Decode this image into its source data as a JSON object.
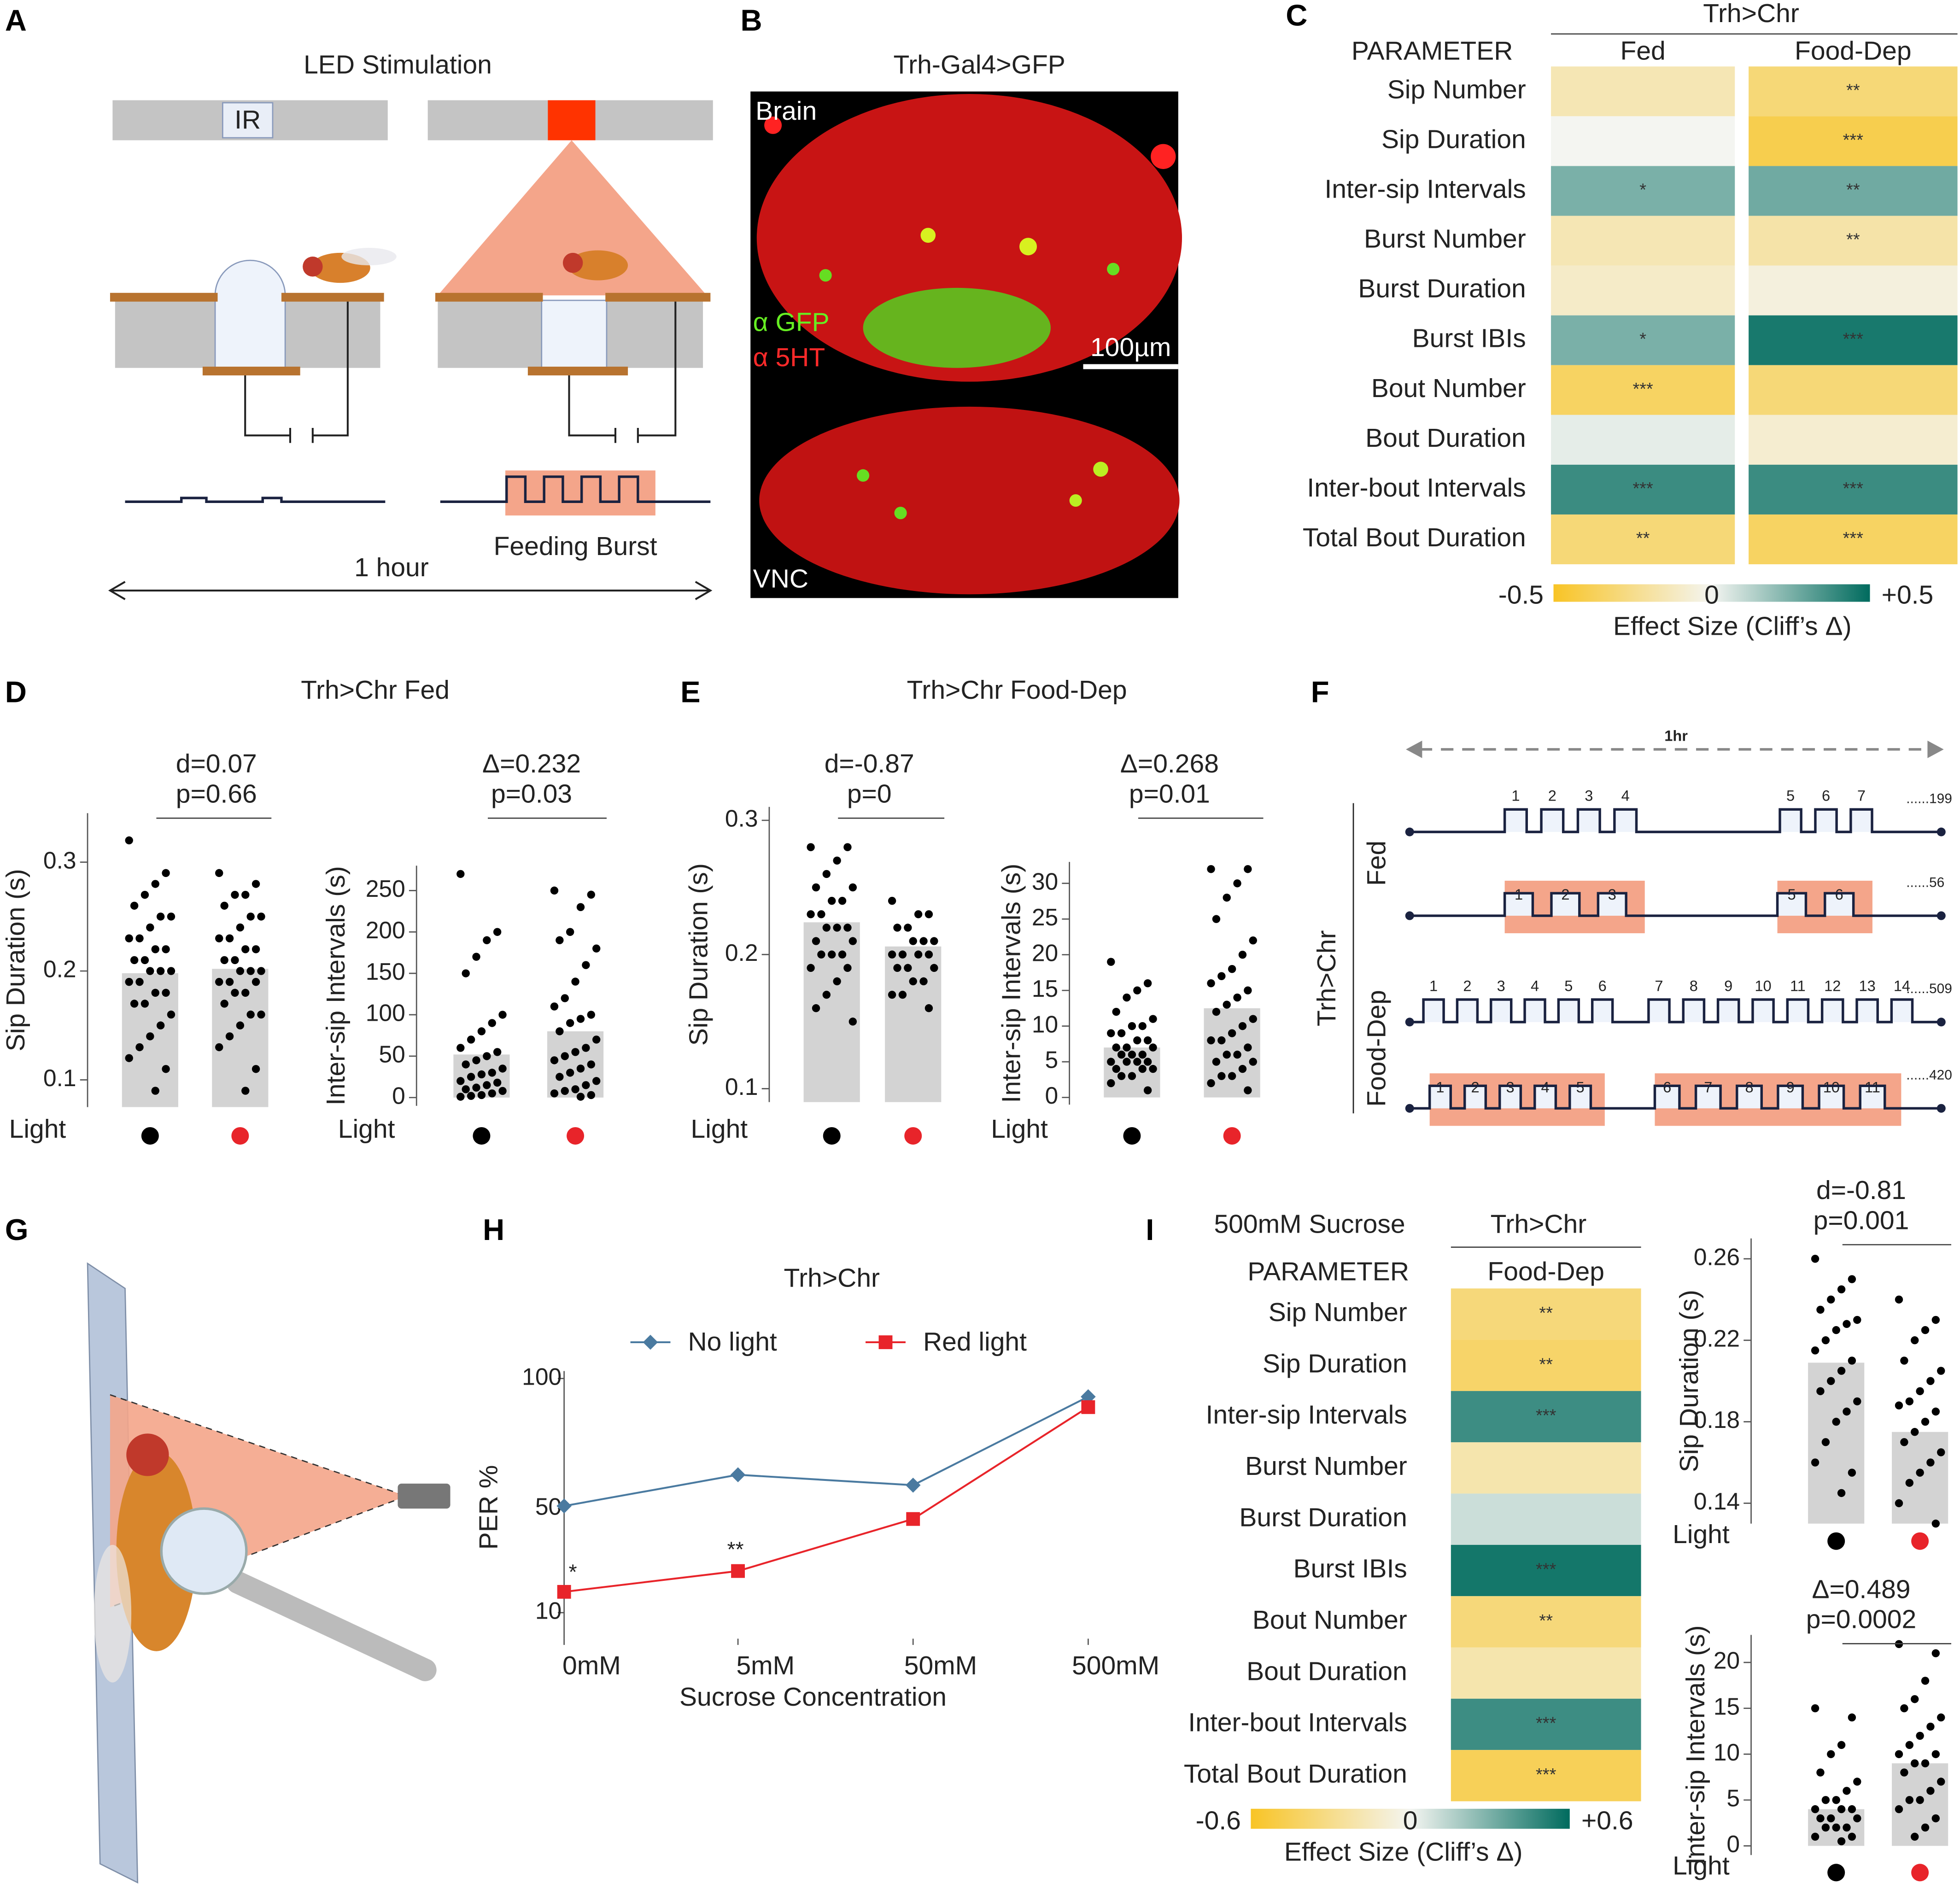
{
  "panel_labels": [
    "A",
    "B",
    "C",
    "D",
    "E",
    "F",
    "G",
    "H",
    "I"
  ],
  "panel_a": {
    "title": "LED Stimulation",
    "ir_label": "IR",
    "burst_label": "Feeding Burst",
    "duration_label": "1 hour"
  },
  "panel_b": {
    "title": "Trh-Gal4>GFP",
    "region_top": "Brain",
    "stain_green": "α GFP",
    "stain_red": "α 5HT",
    "scale_bar": "100µm",
    "region_bottom": "VNC"
  },
  "panel_c": {
    "genotype": "Trh>Chr",
    "header": "PARAMETER",
    "columns": [
      "Fed",
      "Food-Dep"
    ],
    "rows": [
      "Sip Number",
      "Sip Duration",
      "Inter-sip Intervals",
      "Burst Number",
      "Burst Duration",
      "Burst IBIs",
      "Bout Number",
      "Bout Duration",
      "Inter-bout Intervals",
      "Total Bout Duration"
    ],
    "values": [
      [
        -0.15,
        0.0,
        0.25,
        -0.15,
        -0.1,
        0.25,
        -0.35,
        0.03,
        0.38,
        -0.3
      ],
      [
        -0.3,
        -0.4,
        0.27,
        -0.18,
        -0.05,
        0.45,
        -0.3,
        -0.08,
        0.38,
        -0.35
      ]
    ],
    "stars": [
      [
        null,
        null,
        "*",
        null,
        null,
        "*",
        "***",
        null,
        "***",
        "**"
      ],
      [
        "**",
        "***",
        "**",
        "**",
        null,
        "***",
        null,
        null,
        "***",
        "***"
      ]
    ],
    "clim": [
      -0.5,
      0.5
    ],
    "cticks": [
      -0.5,
      0,
      {
        "value": 0.5,
        "label": "+0.5"
      }
    ],
    "colorbar_label": "Effect Size (Cliff’s Δ)",
    "colors": [
      "#f8c425",
      "#f4f5f1",
      "#006b5e"
    ]
  },
  "panel_d": {
    "title": "Trh>Chr Fed"
  },
  "panel_e": {
    "title": "Trh>Chr Food-Dep"
  },
  "panel_f": {
    "duration": "1hr",
    "genotype": "Trh>Chr",
    "conditions": [
      "Fed",
      "Food-Dep"
    ],
    "rows": [
      {
        "groups": [
          [
            "1",
            "2",
            "3",
            "4"
          ],
          [
            "5",
            "6",
            "7"
          ]
        ],
        "total": "......199",
        "highlight": false
      },
      {
        "groups": [
          [
            "1",
            "2",
            "3"
          ],
          [
            "5",
            "6"
          ]
        ],
        "total": "......56",
        "highlight": true
      },
      {
        "groups": [
          [
            "1",
            "2",
            "3",
            "4",
            "5",
            "6"
          ],
          [
            "7",
            "8",
            "9",
            "10",
            "11",
            "12",
            "13",
            "14"
          ]
        ],
        "total": "......509",
        "highlight": false
      },
      {
        "groups": [
          [
            "1",
            "2",
            "3",
            "4",
            "5"
          ],
          [
            "6",
            "7",
            "8",
            "9",
            "10",
            "11"
          ]
        ],
        "total": "......420",
        "highlight": true
      }
    ]
  },
  "panel_i": {
    "title": "500mM Sucrose",
    "genotype": "Trh>Chr",
    "header": "PARAMETER",
    "columns": [
      "Food-Dep"
    ],
    "rows": [
      "Sip Number",
      "Sip Duration",
      "Inter-sip Intervals",
      "Burst Number",
      "Burst Duration",
      "Burst IBIs",
      "Bout Number",
      "Bout Duration",
      "Inter-bout Intervals",
      "Total Bout Duration"
    ],
    "values": [
      [
        -0.35,
        -0.4,
        0.45,
        -0.2,
        0.1,
        0.55,
        -0.35,
        -0.2,
        0.45,
        -0.45
      ]
    ],
    "stars": [
      [
        "**",
        "**",
        "***",
        null,
        null,
        "***",
        "**",
        null,
        "***",
        "***"
      ]
    ],
    "clim": [
      -0.6,
      0.6
    ],
    "cticks": [
      -0.6,
      0,
      {
        "value": 0.6,
        "label": "+0.6"
      }
    ],
    "colorbar_label": "Effect Size (Cliff’s Δ)",
    "colors": [
      "#f8c425",
      "#f4f5f1",
      "#006b5e"
    ]
  },
  "chart_data": [
    {
      "type": "swarm",
      "ylabel": "Sip Duration (s)",
      "xlabel": "Light",
      "stat": [
        "d=0.07",
        "p=0.66"
      ],
      "ylim": [
        0.075,
        0.345
      ],
      "yticks": [
        0.1,
        0.2,
        0.3
      ],
      "values": [
        0.198,
        0.202
      ],
      "points": [
        [
          0.32,
          0.29,
          0.28,
          0.27,
          0.26,
          0.25,
          0.25,
          0.24,
          0.23,
          0.23,
          0.22,
          0.22,
          0.21,
          0.21,
          0.2,
          0.2,
          0.2,
          0.19,
          0.19,
          0.18,
          0.18,
          0.17,
          0.17,
          0.16,
          0.15,
          0.14,
          0.13,
          0.12,
          0.11,
          0.09
        ],
        [
          0.29,
          0.28,
          0.27,
          0.27,
          0.26,
          0.25,
          0.25,
          0.24,
          0.23,
          0.23,
          0.22,
          0.22,
          0.21,
          0.21,
          0.2,
          0.2,
          0.2,
          0.19,
          0.19,
          0.19,
          0.18,
          0.18,
          0.17,
          0.16,
          0.16,
          0.15,
          0.14,
          0.13,
          0.11,
          0.09
        ]
      ],
      "colors": [
        "#000000",
        "#e8242a"
      ],
      "bar_color": "#d3d3d3",
      "point_color": "#000000"
    },
    {
      "type": "swarm",
      "ylabel": "Inter-sip Intervals (s)",
      "xlabel": "Light",
      "stat": [
        "Δ=0.232",
        "p=0.03"
      ],
      "ylim": [
        -10,
        280
      ],
      "yticks": [
        0,
        50,
        100,
        150,
        200,
        250
      ],
      "values": [
        52,
        80
      ],
      "points": [
        [
          270,
          200,
          190,
          170,
          150,
          100,
          90,
          80,
          70,
          60,
          55,
          50,
          45,
          40,
          35,
          30,
          28,
          25,
          20,
          18,
          15,
          12,
          10,
          8,
          5,
          3,
          2,
          1
        ],
        [
          250,
          245,
          230,
          200,
          190,
          180,
          160,
          140,
          120,
          110,
          100,
          95,
          90,
          80,
          70,
          60,
          55,
          50,
          45,
          40,
          35,
          30,
          25,
          20,
          15,
          10,
          8,
          5,
          3,
          1
        ]
      ],
      "colors": [
        "#000000",
        "#e8242a"
      ],
      "bar_color": "#d3d3d3",
      "point_color": "#000000"
    },
    {
      "type": "swarm",
      "ylabel": "Sip Duration (s)",
      "xlabel": "Light",
      "stat": [
        "d=-0.87",
        "p=0"
      ],
      "ylim": [
        0.09,
        0.31
      ],
      "yticks": [
        0.1,
        0.2,
        0.3
      ],
      "values": [
        0.224,
        0.206
      ],
      "points": [
        [
          0.28,
          0.28,
          0.27,
          0.26,
          0.25,
          0.25,
          0.24,
          0.24,
          0.23,
          0.23,
          0.22,
          0.22,
          0.22,
          0.21,
          0.21,
          0.2,
          0.2,
          0.2,
          0.19,
          0.19,
          0.18,
          0.17,
          0.16,
          0.15
        ],
        [
          0.24,
          0.23,
          0.23,
          0.22,
          0.22,
          0.21,
          0.21,
          0.21,
          0.2,
          0.2,
          0.2,
          0.2,
          0.19,
          0.19,
          0.19,
          0.18,
          0.18,
          0.17,
          0.17,
          0.16
        ]
      ],
      "colors": [
        "#000000",
        "#e8242a"
      ],
      "bar_color": "#d3d3d3",
      "point_color": "#000000"
    },
    {
      "type": "swarm",
      "ylabel": "Inter-sip Intervals (s)",
      "xlabel": "Light",
      "stat": [
        "Δ=0.268",
        "p=0.01"
      ],
      "ylim": [
        -1,
        33
      ],
      "yticks": [
        0,
        5,
        10,
        15,
        20,
        25,
        30
      ],
      "values": [
        7,
        12.5
      ],
      "points": [
        [
          19,
          16,
          15,
          14,
          12,
          11,
          10,
          10,
          9,
          9,
          8,
          8,
          7,
          7,
          7,
          6,
          6,
          6,
          5,
          5,
          5,
          5,
          4,
          4,
          4,
          3,
          3,
          2,
          1
        ],
        [
          32,
          32,
          30,
          28,
          25,
          22,
          20,
          18,
          17,
          16,
          15,
          14,
          13,
          12,
          11,
          10,
          9,
          8,
          8,
          7,
          6,
          6,
          5,
          5,
          4,
          3,
          3,
          2,
          1
        ]
      ],
      "colors": [
        "#000000",
        "#e8242a"
      ],
      "bar_color": "#d3d3d3",
      "point_color": "#000000"
    },
    {
      "type": "swarm",
      "ylabel": "Sip Duration (s)",
      "xlabel": "Light",
      "stat": [
        "d=-0.81",
        "p=0.001"
      ],
      "ylim": [
        0.13,
        0.27
      ],
      "yticks": [
        0.14,
        0.18,
        0.22,
        0.26
      ],
      "values": [
        0.209,
        0.175
      ],
      "points": [
        [
          0.26,
          0.25,
          0.245,
          0.24,
          0.235,
          0.23,
          0.228,
          0.225,
          0.22,
          0.215,
          0.21,
          0.205,
          0.2,
          0.195,
          0.19,
          0.185,
          0.18,
          0.17,
          0.16,
          0.155,
          0.145
        ],
        [
          0.24,
          0.23,
          0.225,
          0.22,
          0.21,
          0.205,
          0.2,
          0.195,
          0.19,
          0.188,
          0.185,
          0.18,
          0.175,
          0.17,
          0.165,
          0.16,
          0.155,
          0.15,
          0.14,
          0.13
        ]
      ],
      "colors": [
        "#000000",
        "#e8242a"
      ],
      "bar_color": "#d3d3d3",
      "point_color": "#000000"
    },
    {
      "type": "swarm",
      "ylabel": "Inter-sip Intervals (s)",
      "xlabel": "Light",
      "stat": [
        "Δ=0.489",
        "p=0.0002"
      ],
      "ylim": [
        -1,
        23
      ],
      "yticks": [
        0,
        5,
        10,
        15,
        20
      ],
      "values": [
        4,
        9
      ],
      "points": [
        [
          15,
          14,
          11,
          10,
          8,
          7,
          6,
          5,
          5,
          4,
          4,
          4,
          3,
          3,
          3,
          2,
          2,
          2,
          1,
          1,
          0.5
        ],
        [
          22,
          21,
          18,
          16,
          15,
          14,
          13,
          12,
          11,
          10,
          10,
          9,
          9,
          8,
          7,
          6,
          5,
          5,
          4,
          3,
          2,
          1
        ]
      ],
      "colors": [
        "#000000",
        "#e8242a"
      ],
      "bar_color": "#d3d3d3",
      "point_color": "#000000"
    },
    {
      "type": "line",
      "title": "Trh>Chr",
      "xlabel": "Sucrose Concentration",
      "ylabel": "PER %",
      "categories": [
        "0mM",
        "5mM",
        "50mM",
        "500mM"
      ],
      "series": [
        {
          "name": "No light",
          "color": "#4a7aa0",
          "marker": "diamond",
          "values": [
            51,
            63,
            59,
            93
          ]
        },
        {
          "name": "Red light",
          "color": "#e8242a",
          "marker": "square",
          "values": [
            18,
            26,
            46,
            89
          ]
        }
      ],
      "ylim": [
        0,
        100
      ],
      "yticks": [
        10,
        50,
        100
      ],
      "annotations": [
        "*",
        "**"
      ]
    }
  ]
}
